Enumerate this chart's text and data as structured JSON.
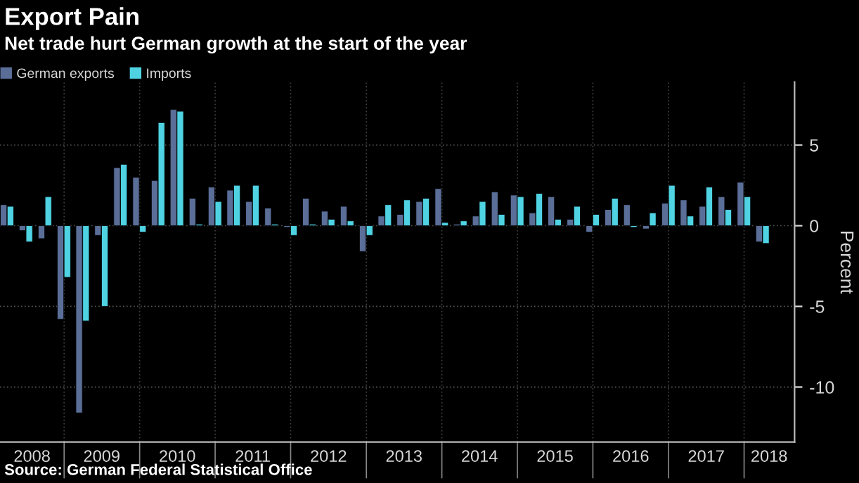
{
  "chart_data": {
    "type": "bar",
    "title": "Export Pain",
    "subtitle": "Net trade hurt German growth at the start of the year",
    "x": [
      "2008-03-31",
      "2008-06-30",
      "2008-09-30",
      "2008-12-31",
      "2009-03-31",
      "2009-06-30",
      "2009-09-30",
      "2009-12-31",
      "2010-03-31",
      "2010-06-30",
      "2010-09-30",
      "2010-12-31",
      "2011-03-31",
      "2011-06-30",
      "2011-09-30",
      "2011-12-31",
      "2012-03-31",
      "2012-06-30",
      "2012-09-30",
      "2012-12-31",
      "2013-03-31",
      "2013-06-30",
      "2013-09-30",
      "2013-12-31",
      "2014-03-31",
      "2014-06-30",
      "2014-09-30",
      "2014-12-31",
      "2015-03-31",
      "2015-06-30",
      "2015-09-30",
      "2015-12-31",
      "2016-03-31",
      "2016-06-30",
      "2016-09-30",
      "2016-12-31",
      "2017-03-31",
      "2017-06-30",
      "2017-09-30",
      "2017-12-31",
      "2018-03-31"
    ],
    "series": [
      {
        "name": "German exports",
        "color": "#5a6e98",
        "values": [
          1.3,
          -0.3,
          -0.8,
          -5.8,
          -11.6,
          -0.6,
          3.6,
          3.0,
          2.8,
          7.2,
          1.7,
          2.4,
          2.2,
          1.5,
          1.1,
          -0.1,
          1.7,
          0.9,
          1.2,
          -1.6,
          0.6,
          0.7,
          1.5,
          2.3,
          0.1,
          0.6,
          2.1,
          1.9,
          0.8,
          1.8,
          0.4,
          -0.4,
          1.0,
          1.3,
          -0.2,
          1.4,
          1.6,
          1.2,
          1.8,
          2.7,
          -1.0
        ]
      },
      {
        "name": "Imports",
        "color": "#4fd3e3",
        "values": [
          1.2,
          -1.0,
          1.8,
          -3.2,
          -5.9,
          -5.0,
          3.8,
          -0.4,
          6.4,
          7.1,
          0.1,
          1.5,
          2.5,
          2.5,
          0.1,
          -0.6,
          0.1,
          0.4,
          0.3,
          -0.6,
          1.3,
          1.6,
          1.7,
          0.2,
          0.3,
          1.5,
          0.7,
          1.8,
          2.0,
          0.4,
          1.2,
          0.7,
          1.7,
          -0.1,
          0.8,
          2.5,
          0.6,
          2.4,
          1.0,
          1.8,
          -1.1
        ]
      }
    ],
    "xlim": [
      "2008-02-26",
      "2018-09-02"
    ],
    "xticks": [
      {
        "value": "2008-07-30",
        "label": "2008"
      },
      {
        "value": "2009-07-02",
        "label": "2009"
      },
      {
        "value": "2010-07-02",
        "label": "2010"
      },
      {
        "value": "2011-07-02",
        "label": "2011"
      },
      {
        "value": "2012-07-02",
        "label": "2012"
      },
      {
        "value": "2013-07-02",
        "label": "2013"
      },
      {
        "value": "2014-07-02",
        "label": "2014"
      },
      {
        "value": "2015-07-02",
        "label": "2015"
      },
      {
        "value": "2016-07-02",
        "label": "2016"
      },
      {
        "value": "2017-07-02",
        "label": "2017"
      },
      {
        "value": "2018-05-02",
        "label": "2018"
      }
    ],
    "ref_lines": [
      {
        "axis": "x",
        "value": "2009-01-01"
      },
      {
        "axis": "x",
        "value": "2010-01-01"
      },
      {
        "axis": "x",
        "value": "2011-01-01"
      },
      {
        "axis": "x",
        "value": "2012-01-01"
      },
      {
        "axis": "x",
        "value": "2013-01-01"
      },
      {
        "axis": "x",
        "value": "2014-01-01"
      },
      {
        "axis": "x",
        "value": "2015-01-01"
      },
      {
        "axis": "x",
        "value": "2016-01-01"
      },
      {
        "axis": "x",
        "value": "2017-01-01"
      },
      {
        "axis": "x",
        "value": "2018-01-01"
      }
    ],
    "ylim": [
      -13.4,
      8.9
    ],
    "yticks": [
      -10,
      -5,
      0,
      5
    ],
    "ylabel": "Percent",
    "grid": "y",
    "legend": "top left",
    "annotations": [
      "Source: German Federal Statistical Office"
    ]
  }
}
